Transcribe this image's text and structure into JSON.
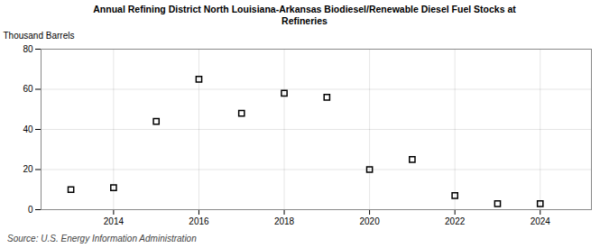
{
  "chart_data": {
    "type": "scatter",
    "title": "Annual Refining District North Louisiana-Arkansas Biodiesel/Renewable Diesel Fuel Stocks at\nRefineries",
    "ylabel": "Thousand Barrels",
    "source": "Source: U.S. Energy Information Administration",
    "x": [
      2013,
      2014,
      2015,
      2016,
      2017,
      2018,
      2019,
      2020,
      2021,
      2022,
      2023,
      2024
    ],
    "values": [
      10,
      11,
      44,
      65,
      48,
      58,
      56,
      20,
      25,
      7,
      3,
      3
    ],
    "marker": "square",
    "xlim": [
      2012.3,
      2025.2
    ],
    "ylim": [
      0,
      80
    ],
    "xticks": [
      2014,
      2016,
      2018,
      2020,
      2022,
      2024
    ],
    "yticks": [
      0,
      20,
      40,
      60,
      80
    ],
    "grid": true
  }
}
